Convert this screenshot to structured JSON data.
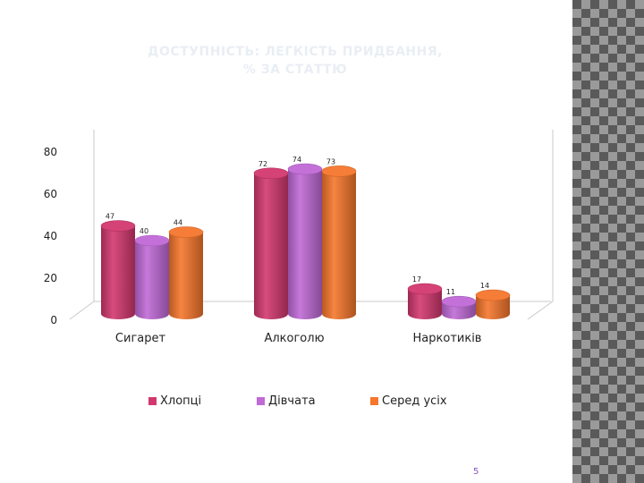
{
  "slide": {
    "title_line1": "ДОСТУПНІСТЬ: ЛЕГКІСТЬ ПРИДБАННЯ,",
    "title_line2": "% ЗА СТАТТЮ",
    "page_number": "5"
  },
  "chart_data": {
    "type": "bar",
    "title": "",
    "categories": [
      "Сигарет",
      "Алкоголю",
      "Наркотиків"
    ],
    "series": [
      {
        "name": "Хлопці",
        "values": [
          47,
          72,
          17
        ],
        "color": "#d2386f"
      },
      {
        "name": "Дівчата",
        "values": [
          40,
          74,
          11
        ],
        "color": "#c06ad6"
      },
      {
        "name": "Серед усіх",
        "values": [
          44,
          73,
          14
        ],
        "color": "#f5762c"
      }
    ],
    "ylim": [
      0,
      80
    ],
    "yticks": [
      0,
      20,
      40,
      60,
      80
    ],
    "legend_position": "bottom",
    "grid": false,
    "three_d": true
  }
}
